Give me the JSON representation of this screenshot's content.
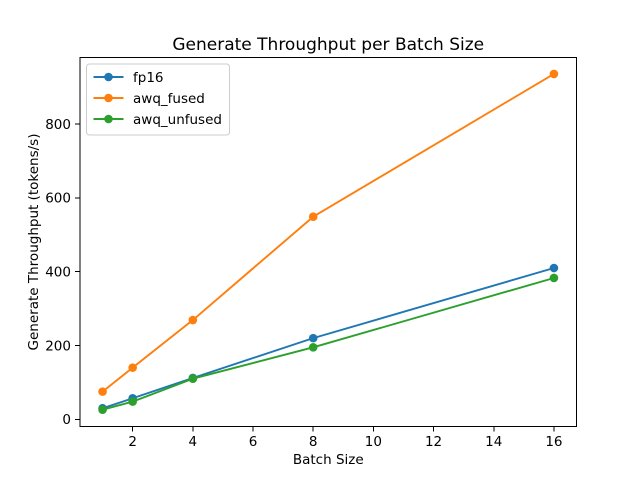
{
  "chart_data": {
    "type": "line",
    "title": "Generate Throughput per Batch Size",
    "xlabel": "Batch Size",
    "ylabel": "Generate Throughput (tokens/s)",
    "x": [
      1,
      2,
      4,
      8,
      16
    ],
    "series": [
      {
        "name": "fp16",
        "color": "#1f77b4",
        "values": [
          30,
          57,
          112,
          220,
          410
        ]
      },
      {
        "name": "awq_fused",
        "color": "#ff7f0e",
        "values": [
          75,
          140,
          269,
          549,
          936
        ]
      },
      {
        "name": "awq_unfused",
        "color": "#2ca02c",
        "values": [
          26,
          48,
          110,
          195,
          383
        ]
      }
    ],
    "xticks": [
      2,
      4,
      6,
      8,
      10,
      12,
      14,
      16
    ],
    "yticks": [
      0,
      200,
      400,
      600,
      800
    ],
    "xlim": [
      0.25,
      16.75
    ],
    "ylim": [
      -19.5,
      980.5
    ],
    "legend_position": "upper left",
    "grid": false,
    "marker": "o",
    "background_color": "#ffffff"
  }
}
